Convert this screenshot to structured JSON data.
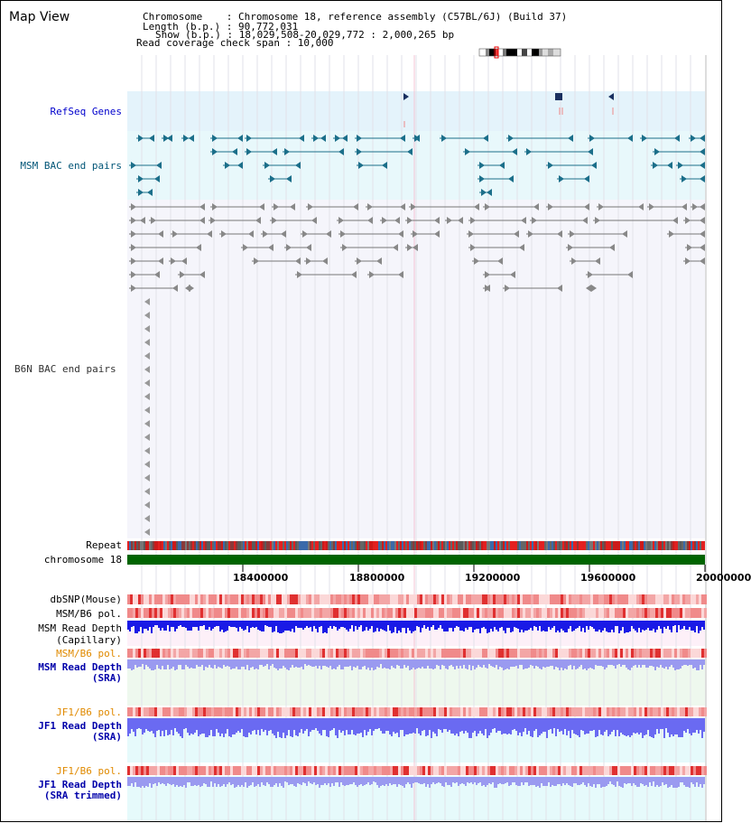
{
  "view": {
    "title": "Map View"
  },
  "header": {
    "chromosome_line": "Chromosome    : Chromosome 18, reference assembly (C57BL/6J) (Build 37)",
    "length_line": "Length (b.p.) : 90,772,031",
    "show_line": "Show (b.p.) : 18,029,508-20,029,772 : 2,000,265 bp",
    "coverage_line": "Read coverage check span : 10,000"
  },
  "tracks": {
    "refseq": "RefSeq Genes",
    "msm_bac": "MSM BAC end pairs",
    "b6n_bac": "B6N BAC end pairs",
    "repeat": "Repeat",
    "chromosome": "chromosome 18",
    "dbsnp": "dbSNP(Mouse)",
    "msm_b6_pol": "MSM/B6 pol.",
    "msm_depth_cap_1": "MSM Read Depth",
    "msm_depth_cap_2": "(Capillary)",
    "msm_b6_pol_sra": "MSM/B6 pol.",
    "msm_depth_sra_1": "MSM Read Depth",
    "msm_depth_sra_2": "(SRA)",
    "jf1_b6_pol_1": "JF1/B6 pol.",
    "jf1_depth_sra_1": "JF1 Read Depth",
    "jf1_depth_sra_2": "(SRA)",
    "jf1_b6_pol_2": "JF1/B6 pol.",
    "jf1_depth_trim_1": "JF1 Read Depth",
    "jf1_depth_trim_2": "(SRA trimmed)"
  },
  "axis": {
    "ticks": [
      "18400000",
      "18800000",
      "19200000",
      "19600000",
      "20000000"
    ]
  },
  "colors": {
    "refseq_bg": "#e4f3fb",
    "msm_bac_bg": "#e8f8fb",
    "b6n_bg": "#f5f5fb",
    "msm_cap_bg": "#fdf0f8",
    "sra_bg": "#eef8ee",
    "jf1_bg": "#e6fafb",
    "refseq_label": "#0000cc",
    "msm_label": "#005577",
    "b6n_label": "#333333",
    "pol_label_orange": "#e08a00",
    "depth_label_blue": "#0000aa",
    "chromosome_bar": "#006400",
    "capillary_depth": "#1a1ae6",
    "sra_depth": "#9a9af0",
    "jf1_depth": "#6a6af2",
    "polymorphism": "#f3a6a6",
    "polymorphism_dark": "#e03030"
  }
}
